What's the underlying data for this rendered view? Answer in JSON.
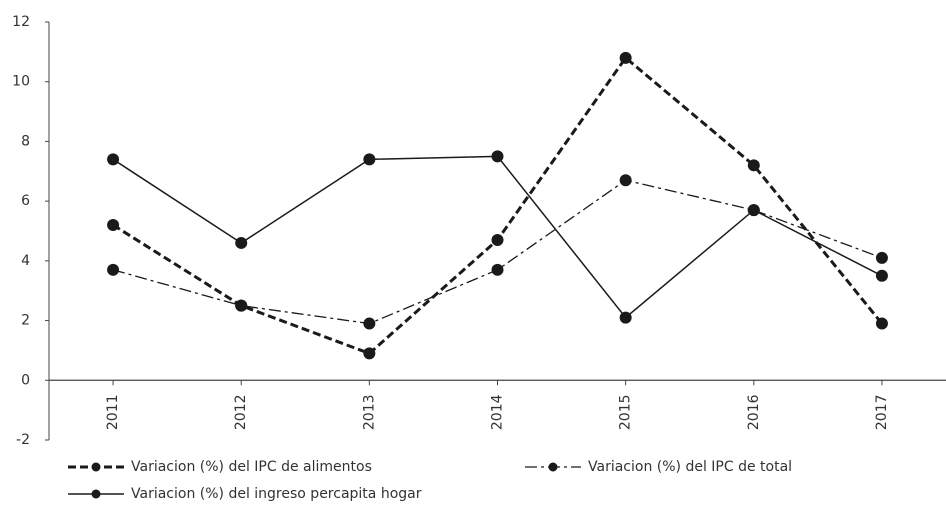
{
  "chart_data": {
    "type": "line",
    "categories": [
      "2011",
      "2012",
      "2013",
      "2014",
      "2015",
      "2016",
      "2017"
    ],
    "series": [
      {
        "name": "Variacion (%) del IPC de alimentos",
        "color": "#1a1a1a",
        "line_style": "dashed",
        "values": [
          5.2,
          2.5,
          0.9,
          4.7,
          10.8,
          7.2,
          1.9
        ]
      },
      {
        "name": "Variacion (%) del IPC de total",
        "color": "#1a1a1a",
        "line_style": "dashdot",
        "values": [
          3.7,
          2.5,
          1.9,
          3.7,
          6.7,
          5.7,
          4.1
        ]
      },
      {
        "name": "Variacion (%) del ingreso percapita hogar",
        "color": "#1a1a1a",
        "line_style": "solid",
        "values": [
          7.4,
          4.6,
          7.4,
          7.5,
          2.1,
          5.7,
          3.5
        ]
      }
    ],
    "ylim": [
      -2,
      12
    ],
    "yticks": [
      -2,
      0,
      2,
      4,
      6,
      8,
      10,
      12
    ],
    "grid": false,
    "legend": "bottom"
  }
}
